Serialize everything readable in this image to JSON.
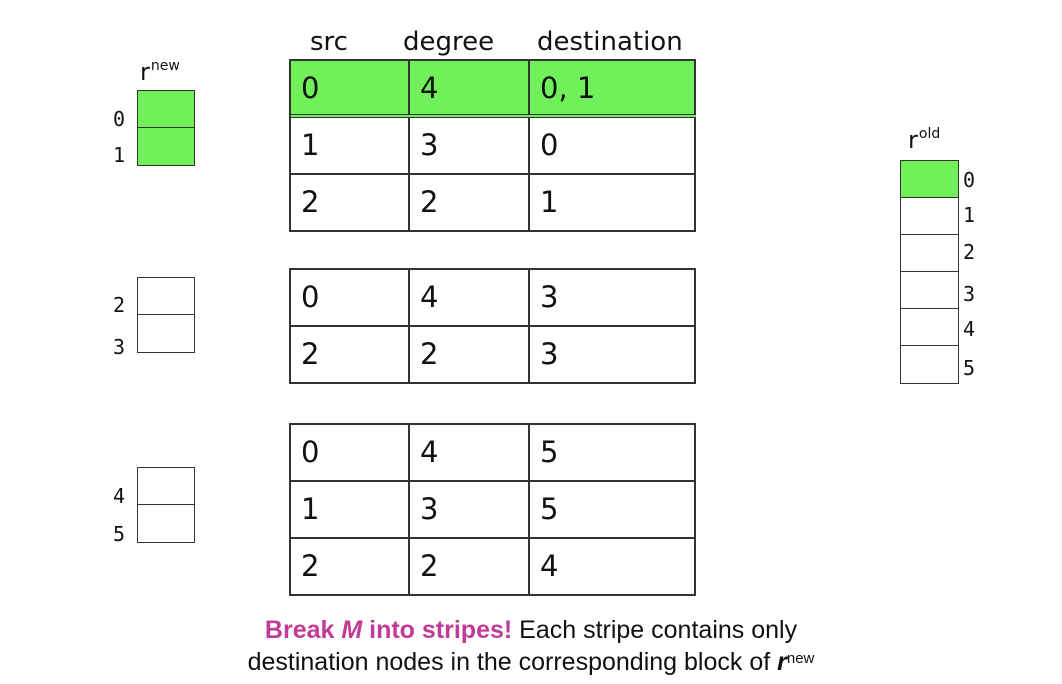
{
  "headers": {
    "src": "src",
    "degree": "degree",
    "destination": "destination"
  },
  "r_new": {
    "base": "r",
    "sup": "new",
    "blocks": [
      {
        "indices": [
          "0",
          "1"
        ]
      },
      {
        "indices": [
          "2",
          "3"
        ]
      },
      {
        "indices": [
          "4",
          "5"
        ]
      }
    ],
    "highlighted_block": 0
  },
  "r_old": {
    "base": "r",
    "sup": "old",
    "indices": [
      "0",
      "1",
      "2",
      "3",
      "4",
      "5"
    ],
    "highlighted_index": 0
  },
  "stripes": [
    {
      "rows": [
        {
          "src": "0",
          "degree": "4",
          "destination": "0, 1",
          "highlight": true
        },
        {
          "src": "1",
          "degree": "3",
          "destination": "0"
        },
        {
          "src": "2",
          "degree": "2",
          "destination": "1"
        }
      ]
    },
    {
      "rows": [
        {
          "src": "0",
          "degree": "4",
          "destination": "3"
        },
        {
          "src": "2",
          "degree": "2",
          "destination": "3"
        }
      ]
    },
    {
      "rows": [
        {
          "src": "0",
          "degree": "4",
          "destination": "5"
        },
        {
          "src": "1",
          "degree": "3",
          "destination": "5"
        },
        {
          "src": "2",
          "degree": "2",
          "destination": "4"
        }
      ]
    }
  ],
  "caption": {
    "part1": "Break ",
    "part1_italic": "M",
    "part1_end": " into stripes!",
    "part2": " Each stripe contains only",
    "line2": "destination nodes in the corresponding block of ",
    "line2_var": "r",
    "line2_sup": "new"
  },
  "colors": {
    "highlight": "#70f059",
    "accent": "#c13a95"
  }
}
